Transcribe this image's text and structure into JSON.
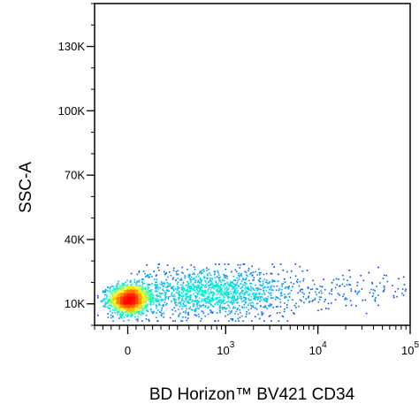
{
  "chart_data": {
    "type": "scatter",
    "subtype": "flow-cytometry-density-dot-plot",
    "xlabel": "BD Horizon™ BV421 CD34",
    "ylabel": "SSC-A",
    "x_scale": "biexponential",
    "y_scale": "linear",
    "xlim": [
      -200,
      100000
    ],
    "ylim": [
      0,
      150000
    ],
    "x_ticks": [
      {
        "value": 0,
        "base": "0",
        "exp": ""
      },
      {
        "value": 1000,
        "base": "10",
        "exp": "3"
      },
      {
        "value": 10000,
        "base": "10",
        "exp": "4"
      },
      {
        "value": 100000,
        "base": "10",
        "exp": "5"
      }
    ],
    "y_ticks": [
      {
        "value": 10000,
        "label": "10K"
      },
      {
        "value": 40000,
        "label": "40K"
      },
      {
        "value": 70000,
        "label": "70K"
      },
      {
        "value": 100000,
        "label": "100K"
      },
      {
        "value": 130000,
        "label": "130K"
      }
    ],
    "populations": [
      {
        "name": "",
        "x_center": 5,
        "y_center": 12000,
        "x_spread": 60,
        "y_spread": 3500,
        "count": 1500
      },
      {
        "name": "",
        "x_center": 700,
        "y_center": 15000,
        "x_spread_decades": 0.5,
        "y_spread": 5500,
        "count": 1500
      },
      {
        "name": "",
        "x_center": 25000,
        "y_center": 16000,
        "x_spread_decades": 0.35,
        "y_spread": 4000,
        "count": 110
      }
    ],
    "color_scale": [
      "#0000ff",
      "#00aaff",
      "#00ffcc",
      "#ffff00",
      "#ff7f00",
      "#ff0000"
    ],
    "grid": false,
    "legend": "none"
  }
}
